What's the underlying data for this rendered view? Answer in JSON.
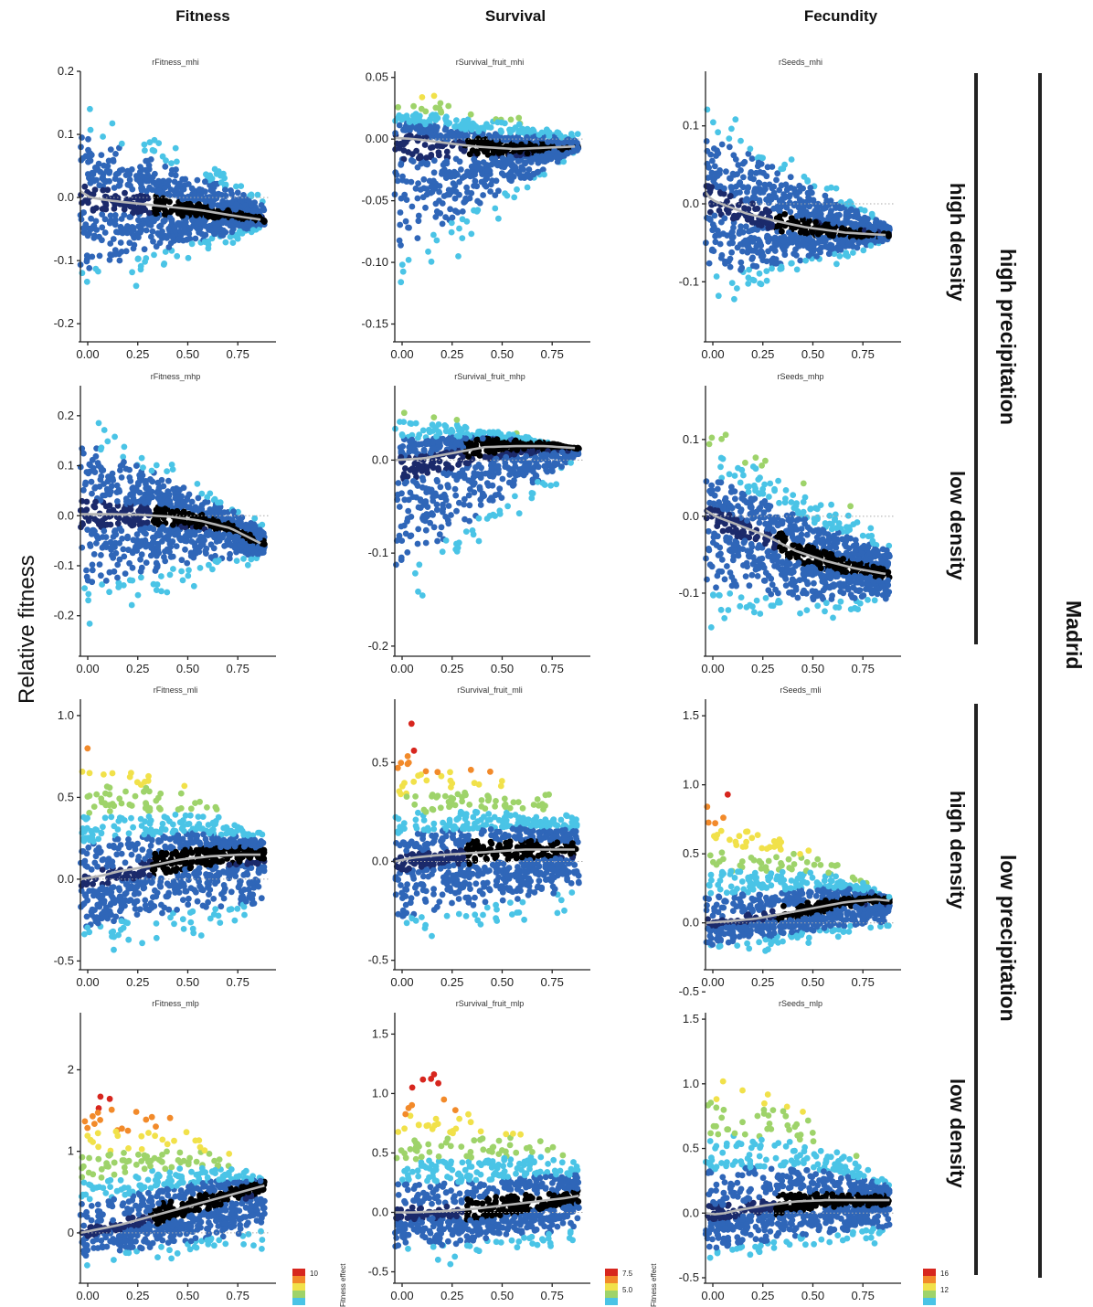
{
  "column_headers": [
    "Fitness",
    "Survival",
    "Fecundity"
  ],
  "y_axis_label": "Relative fitness",
  "right_labels": {
    "density": [
      "high density",
      "low density",
      "high density",
      "low density"
    ],
    "precipitation": [
      "high precipitation",
      "low precipitation"
    ],
    "site": "Madrid"
  },
  "legend": {
    "title": "Fitness effect",
    "fitness_ticks": [
      "10"
    ],
    "survival_ticks": [
      "7.5",
      "5.0"
    ],
    "fecundity_ticks": [
      "16",
      "12"
    ],
    "colors": [
      "#000000",
      "#1b2a6b",
      "#2f66b8",
      "#4ac4e6",
      "#9ed36a",
      "#f1e14a",
      "#f28a2a",
      "#d7261e"
    ]
  },
  "chart_data": [
    {
      "type": "scatter",
      "title": "rFitness_mhi",
      "xlim": [
        0,
        0.95
      ],
      "ylim": [
        -0.22,
        0.2
      ],
      "x_ticks": [
        "0.00",
        "0.25",
        "0.50",
        "0.75"
      ],
      "y_ticks": [
        0.2,
        0.1,
        0.0,
        -0.1,
        -0.2
      ],
      "y_tick_labels": [
        "0.2",
        "0.1",
        "0.0",
        "-0.1",
        "-0.2"
      ],
      "smooth": {
        "x": [
          0,
          0.05,
          0.15,
          0.3,
          0.45,
          0.6,
          0.75,
          0.9
        ],
        "y": [
          0.01,
          0.0,
          -0.005,
          -0.01,
          -0.015,
          -0.02,
          -0.028,
          -0.035
        ]
      },
      "spread": {
        "top0": 0.18,
        "top1": 0.01,
        "bot0": -0.2,
        "bot1": -0.05,
        "hot_level": 0.0
      }
    },
    {
      "type": "scatter",
      "title": "rSurvival_fruit_mhi",
      "xlim": [
        0,
        0.95
      ],
      "ylim": [
        -0.16,
        0.055
      ],
      "x_ticks": [
        "0.00",
        "0.25",
        "0.50",
        "0.75"
      ],
      "y_ticks": [
        0.05,
        0.0,
        -0.05,
        -0.1,
        -0.15
      ],
      "y_tick_labels": [
        "0.05",
        "0.00",
        "-0.05",
        "-0.10",
        "-0.15"
      ],
      "smooth": {
        "x": [
          0,
          0.1,
          0.2,
          0.4,
          0.6,
          0.75,
          0.9
        ],
        "y": [
          0.001,
          0.0,
          -0.002,
          -0.006,
          -0.008,
          -0.007,
          -0.006
        ]
      },
      "spread": {
        "top0": 0.05,
        "top1": 0.005,
        "bot0": -0.155,
        "bot1": -0.01,
        "hot_level": 0.4
      }
    },
    {
      "type": "scatter",
      "title": "rSeeds_mhi",
      "xlim": [
        0,
        0.95
      ],
      "ylim": [
        -0.17,
        0.17
      ],
      "x_ticks": [
        "0.00",
        "0.25",
        "0.50",
        "0.75"
      ],
      "y_ticks": [
        0.1,
        0.0,
        -0.1
      ],
      "y_tick_labels": [
        "0.1",
        "0.0",
        "-0.1"
      ],
      "smooth": {
        "x": [
          0,
          0.03,
          0.1,
          0.2,
          0.35,
          0.5,
          0.7,
          0.9
        ],
        "y": [
          0.015,
          0.005,
          -0.002,
          -0.012,
          -0.022,
          -0.03,
          -0.037,
          -0.04
        ]
      },
      "spread": {
        "top0": 0.16,
        "top1": -0.02,
        "bot0": -0.16,
        "bot1": -0.05,
        "hot_level": 0.0
      }
    },
    {
      "type": "scatter",
      "title": "rFitness_mhp",
      "xlim": [
        0,
        0.95
      ],
      "ylim": [
        -0.27,
        0.26
      ],
      "x_ticks": [
        "0.00",
        "0.25",
        "0.50",
        "0.75"
      ],
      "y_ticks": [
        0.2,
        0.1,
        0.0,
        -0.1,
        -0.2
      ],
      "y_tick_labels": [
        "0.2",
        "0.1",
        "0.0",
        "-0.1",
        "-0.2"
      ],
      "smooth": {
        "x": [
          0,
          0.15,
          0.3,
          0.45,
          0.6,
          0.75,
          0.9
        ],
        "y": [
          0.003,
          0.003,
          0.002,
          -0.002,
          -0.01,
          -0.025,
          -0.055
        ]
      },
      "spread": {
        "top0": 0.25,
        "top1": -0.01,
        "bot0": -0.25,
        "bot1": -0.1,
        "hot_level": 0.0
      }
    },
    {
      "type": "scatter",
      "title": "rSurvival_fruit_mhp",
      "xlim": [
        0,
        0.95
      ],
      "ylim": [
        -0.205,
        0.08
      ],
      "x_ticks": [
        "0.00",
        "0.25",
        "0.50",
        "0.75"
      ],
      "y_ticks": [
        0.0,
        -0.1,
        -0.2
      ],
      "y_tick_labels": [
        "0.0",
        "-0.1",
        "-0.2"
      ],
      "smooth": {
        "x": [
          0,
          0.15,
          0.3,
          0.45,
          0.6,
          0.75,
          0.9
        ],
        "y": [
          0.0,
          0.002,
          0.008,
          0.014,
          0.015,
          0.015,
          0.013
        ]
      },
      "spread": {
        "top0": 0.075,
        "top1": 0.01,
        "bot0": -0.2,
        "bot1": -0.005,
        "hot_level": 0.3
      }
    },
    {
      "type": "scatter",
      "title": "rSeeds_mhp",
      "xlim": [
        0,
        0.95
      ],
      "ylim": [
        -0.175,
        0.17
      ],
      "x_ticks": [
        "0.00",
        "0.25",
        "0.50",
        "0.75"
      ],
      "y_ticks": [
        0.1,
        0.0,
        -0.1
      ],
      "y_tick_labels": [
        "0.1",
        "0.0",
        "-0.1"
      ],
      "smooth": {
        "x": [
          0,
          0.05,
          0.15,
          0.3,
          0.45,
          0.6,
          0.75,
          0.9
        ],
        "y": [
          0.008,
          0.0,
          -0.01,
          -0.025,
          -0.045,
          -0.058,
          -0.068,
          -0.075
        ]
      },
      "spread": {
        "top0": 0.16,
        "top1": -0.02,
        "bot0": -0.17,
        "bot1": -0.13,
        "hot_level": 0.3
      }
    },
    {
      "type": "scatter",
      "title": "rFitness_mli",
      "xlim": [
        0,
        0.95
      ],
      "ylim": [
        -0.52,
        1.1
      ],
      "x_ticks": [
        "0.00",
        "0.25",
        "0.50",
        "0.75"
      ],
      "y_ticks": [
        1.0,
        0.5,
        0.0,
        -0.5
      ],
      "y_tick_labels": [
        "1.0",
        "0.5",
        "0.0",
        "-0.5"
      ],
      "smooth": {
        "x": [
          0,
          0.1,
          0.2,
          0.35,
          0.5,
          0.65,
          0.8,
          0.9
        ],
        "y": [
          0.0,
          0.02,
          0.05,
          0.08,
          0.12,
          0.14,
          0.15,
          0.15
        ]
      },
      "spread": {
        "top0": 1.05,
        "top1": 0.3,
        "bot0": -0.5,
        "bot1": -0.35,
        "hot_level": 0.6
      }
    },
    {
      "type": "scatter",
      "title": "rSurvival_fruit_mli",
      "xlim": [
        0,
        0.95
      ],
      "ylim": [
        -0.52,
        0.82
      ],
      "x_ticks": [
        "0.00",
        "0.25",
        "0.50",
        "0.75"
      ],
      "y_ticks": [
        0.5,
        0.0,
        -0.5
      ],
      "y_tick_labels": [
        "0.5",
        "0.0",
        "-0.5"
      ],
      "smooth": {
        "x": [
          0,
          0.1,
          0.2,
          0.35,
          0.5,
          0.65,
          0.8,
          0.9
        ],
        "y": [
          0.0,
          0.02,
          0.03,
          0.04,
          0.05,
          0.06,
          0.06,
          0.06
        ]
      },
      "spread": {
        "top0": 0.8,
        "top1": 0.28,
        "bot0": -0.5,
        "bot1": -0.3,
        "hot_level": 0.9
      }
    },
    {
      "type": "scatter",
      "title": "rSeeds_mli",
      "xlim": [
        0,
        0.95
      ],
      "ylim": [
        -0.3,
        1.62
      ],
      "x_ticks": [
        "0.00",
        "0.25",
        "0.50",
        "0.75"
      ],
      "y_ticks": [
        1.5,
        1.0,
        0.5,
        0.0,
        -0.5
      ],
      "y_tick_labels": [
        "1.5",
        "1.0",
        "0.5",
        "0.0",
        "-0.5"
      ],
      "smooth": {
        "x": [
          0,
          0.1,
          0.25,
          0.4,
          0.55,
          0.7,
          0.85,
          0.92
        ],
        "y": [
          0.0,
          0.01,
          0.03,
          0.07,
          0.11,
          0.15,
          0.17,
          0.16
        ]
      },
      "spread": {
        "top0": 1.2,
        "top1": 0.2,
        "bot0": -0.28,
        "bot1": -0.1,
        "hot_level": 0.8
      }
    },
    {
      "type": "scatter",
      "title": "rFitness_mlp",
      "xlim": [
        0,
        0.95
      ],
      "ylim": [
        -0.55,
        2.7
      ],
      "x_ticks": [
        "0.00",
        "0.25",
        "0.50",
        "0.75"
      ],
      "y_ticks": [
        2,
        1,
        0
      ],
      "y_tick_labels": [
        "2",
        "1",
        "0"
      ],
      "smooth": {
        "x": [
          0,
          0.1,
          0.2,
          0.35,
          0.5,
          0.65,
          0.8,
          0.92
        ],
        "y": [
          0.0,
          0.05,
          0.1,
          0.2,
          0.3,
          0.4,
          0.5,
          0.58
        ]
      },
      "spread": {
        "top0": 2.4,
        "top1": 0.7,
        "bot0": -0.5,
        "bot1": -0.35,
        "hot_level": 1.0
      }
    },
    {
      "type": "scatter",
      "title": "rSurvival_fruit_mlp",
      "xlim": [
        0,
        0.95
      ],
      "ylim": [
        -0.55,
        1.68
      ],
      "x_ticks": [
        "0.00",
        "0.25",
        "0.50",
        "0.75"
      ],
      "y_ticks": [
        1.5,
        1.0,
        0.5,
        0.0,
        -0.5
      ],
      "y_tick_labels": [
        "1.5",
        "1.0",
        "0.5",
        "0.0",
        "-0.5"
      ],
      "smooth": {
        "x": [
          0,
          0.1,
          0.25,
          0.4,
          0.55,
          0.7,
          0.85,
          0.92
        ],
        "y": [
          0.0,
          0.0,
          0.01,
          0.03,
          0.06,
          0.09,
          0.12,
          0.14
        ]
      },
      "spread": {
        "top0": 1.5,
        "top1": 0.5,
        "bot0": -0.52,
        "bot1": -0.35,
        "hot_level": 0.9
      }
    },
    {
      "type": "scatter",
      "title": "rSeeds_mlp",
      "xlim": [
        0,
        0.95
      ],
      "ylim": [
        -0.5,
        1.55
      ],
      "x_ticks": [
        "0.00",
        "0.25",
        "0.50",
        "0.75"
      ],
      "y_ticks": [
        1.5,
        1.0,
        0.5,
        0.0,
        -0.5
      ],
      "y_tick_labels": [
        "1.5",
        "1.0",
        "0.5",
        "0.0",
        "-0.5"
      ],
      "smooth": {
        "x": [
          0,
          0.05,
          0.1,
          0.15,
          0.3,
          0.45,
          0.6,
          0.75,
          0.92
        ],
        "y": [
          0.0,
          -0.01,
          0.0,
          0.02,
          0.06,
          0.09,
          0.1,
          0.1,
          0.1
        ]
      },
      "spread": {
        "top0": 1.45,
        "top1": 0.3,
        "bot0": -0.48,
        "bot1": -0.25,
        "hot_level": 0.5
      }
    }
  ]
}
